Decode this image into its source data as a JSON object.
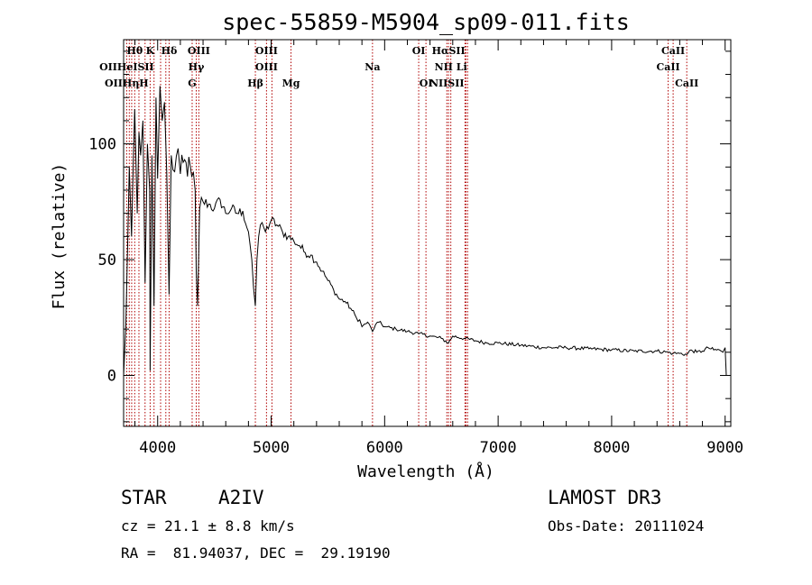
{
  "chart_data": {
    "type": "line",
    "title": "spec-55859-M5904_sp09-011.fits",
    "xlabel": "Wavelength (Å)",
    "ylabel": "Flux (relative)",
    "xlim": [
      3700,
      9050
    ],
    "ylim": [
      -22,
      145
    ],
    "xticks": [
      4000,
      5000,
      6000,
      7000,
      8000,
      9000
    ],
    "yticks": [
      0,
      50,
      100
    ],
    "series": [
      {
        "name": "spectrum",
        "x": [
          3700,
          3720,
          3735,
          3750,
          3770,
          3798,
          3820,
          3835,
          3850,
          3870,
          3889,
          3910,
          3930,
          3934,
          3950,
          3968,
          3985,
          4000,
          4020,
          4040,
          4060,
          4080,
          4101,
          4120,
          4150,
          4180,
          4200,
          4250,
          4300,
          4330,
          4340,
          4352,
          4370,
          4400,
          4450,
          4500,
          4550,
          4600,
          4650,
          4700,
          4750,
          4800,
          4830,
          4845,
          4861,
          4875,
          4890,
          4920,
          4950,
          5000,
          5050,
          5100,
          5150,
          5200,
          5250,
          5300,
          5350,
          5400,
          5450,
          5500,
          5550,
          5600,
          5650,
          5700,
          5750,
          5780,
          5800,
          5850,
          5893,
          5920,
          5950,
          6000,
          6100,
          6200,
          6300,
          6400,
          6500,
          6563,
          6600,
          6700,
          6800,
          6900,
          7000,
          7200,
          7400,
          7600,
          7800,
          8000,
          8200,
          8400,
          8500,
          8542,
          8600,
          8662,
          8700,
          8750,
          8800,
          8850,
          8900,
          8950,
          8980,
          9000,
          9010
        ],
        "y": [
          0,
          22,
          55,
          90,
          60,
          115,
          70,
          105,
          95,
          110,
          40,
          100,
          80,
          2,
          95,
          30,
          120,
          85,
          125,
          110,
          118,
          88,
          35,
          95,
          88,
          98,
          87,
          92,
          86,
          80,
          45,
          30,
          72,
          75,
          74,
          72,
          76,
          70,
          72,
          70,
          71,
          62,
          50,
          38,
          30,
          50,
          60,
          66,
          62,
          67,
          65,
          62,
          60,
          58,
          56,
          53,
          52,
          49,
          45,
          41,
          37,
          33,
          32,
          29,
          25,
          24,
          21,
          23,
          19,
          22,
          23,
          21,
          20,
          19,
          18,
          17,
          16,
          14,
          17,
          16,
          15,
          14,
          14,
          13,
          12,
          12,
          11.5,
          11,
          10.5,
          10.5,
          10,
          9.5,
          9.5,
          9,
          11,
          10,
          10.5,
          12,
          11,
          11,
          10,
          12,
          0
        ]
      }
    ],
    "lines_top": [
      {
        "label": "Hθ",
        "x": 3798
      },
      {
        "label": "K",
        "x": 3934
      },
      {
        "label": "Hδ",
        "x": 4101
      },
      {
        "label": "OIII",
        "x": 4363
      },
      {
        "label": "OIII",
        "x": 4959
      },
      {
        "label": "OI",
        "x": 6300
      },
      {
        "label": "HαSII",
        "x": 6563
      },
      {
        "label": "CaII",
        "x": 8542
      }
    ],
    "lines_mid": [
      {
        "label": "OIIHeISII",
        "x": 3727
      },
      {
        "label": "Hγ",
        "x": 4340
      },
      {
        "label": "OIII",
        "x": 4959
      },
      {
        "label": "Na",
        "x": 5893
      },
      {
        "label": "NII Li",
        "x": 6583
      },
      {
        "label": "CaII",
        "x": 8498
      }
    ],
    "lines_low": [
      {
        "label": "OIIHηH",
        "x": 3727
      },
      {
        "label": "G",
        "x": 4304
      },
      {
        "label": "Hβ",
        "x": 4861
      },
      {
        "label": "Mg",
        "x": 5175
      },
      {
        "label": "OI",
        "x": 6364
      },
      {
        "label": "NIISII",
        "x": 6548
      },
      {
        "label": "CaII",
        "x": 8662
      }
    ],
    "marker_x": [
      3727,
      3750,
      3771,
      3798,
      3835,
      3889,
      3934,
      3968,
      4026,
      4072,
      4101,
      4304,
      4340,
      4363,
      4861,
      4959,
      5007,
      5175,
      5893,
      6300,
      6364,
      6548,
      6563,
      6583,
      6708,
      6716,
      6731,
      8498,
      8542,
      8662
    ]
  },
  "footer": {
    "class_label": "STAR",
    "subclass": "A2IV",
    "survey": "LAMOST DR3",
    "cz": "cz = 21.1 ± 8.8 km/s",
    "obs_date": "Obs-Date: 20111024",
    "coords": "RA =  81.94037, DEC =  29.19190"
  }
}
